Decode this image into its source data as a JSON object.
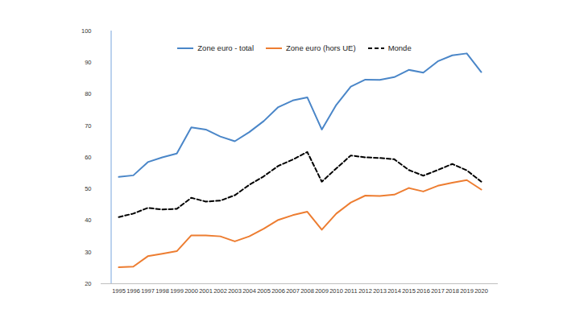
{
  "chart_data": {
    "type": "line",
    "categories": [
      "1995",
      "1996",
      "1997",
      "1998",
      "1999",
      "2000",
      "2001",
      "2002",
      "2003",
      "2004",
      "2005",
      "2006",
      "2007",
      "2008",
      "2009",
      "2010",
      "2011",
      "2012",
      "2013",
      "2014",
      "2015",
      "2016",
      "2017",
      "2018",
      "2019",
      "2020"
    ],
    "series": [
      {
        "name": "Zone euro - total",
        "color": "#4a86c8",
        "line_style": "solid",
        "values": [
          53.8,
          54.3,
          58.5,
          60.0,
          61.2,
          69.5,
          68.8,
          66.6,
          65.1,
          68.0,
          71.5,
          75.9,
          78.0,
          79.0,
          68.8,
          76.6,
          82.4,
          84.6,
          84.5,
          85.4,
          87.7,
          86.8,
          90.4,
          92.3,
          92.9,
          87.0
        ]
      },
      {
        "name": "Zone euro (hors UE)",
        "color": "#ed7d31",
        "line_style": "solid",
        "values": [
          25.2,
          25.4,
          28.7,
          29.5,
          30.3,
          35.3,
          35.3,
          35.0,
          33.4,
          35.0,
          37.4,
          40.2,
          41.7,
          42.8,
          37.1,
          42.2,
          45.7,
          47.9,
          47.8,
          48.2,
          50.3,
          49.2,
          51.0,
          52.0,
          52.8,
          49.8
        ]
      },
      {
        "name": "Monde",
        "color": "#000000",
        "line_style": "dashed",
        "values": [
          41.1,
          42.2,
          44.0,
          43.5,
          43.7,
          47.2,
          46.0,
          46.3,
          48.0,
          51.3,
          54.0,
          57.3,
          59.3,
          61.7,
          52.3,
          56.5,
          60.6,
          60.0,
          59.8,
          59.4,
          56.0,
          54.2,
          56.0,
          57.9,
          55.9,
          52.3
        ]
      }
    ],
    "ylim": [
      20,
      100
    ],
    "yticks": [
      20,
      30,
      40,
      50,
      60,
      70,
      80,
      90,
      100
    ],
    "grid": false,
    "legend": "top"
  }
}
